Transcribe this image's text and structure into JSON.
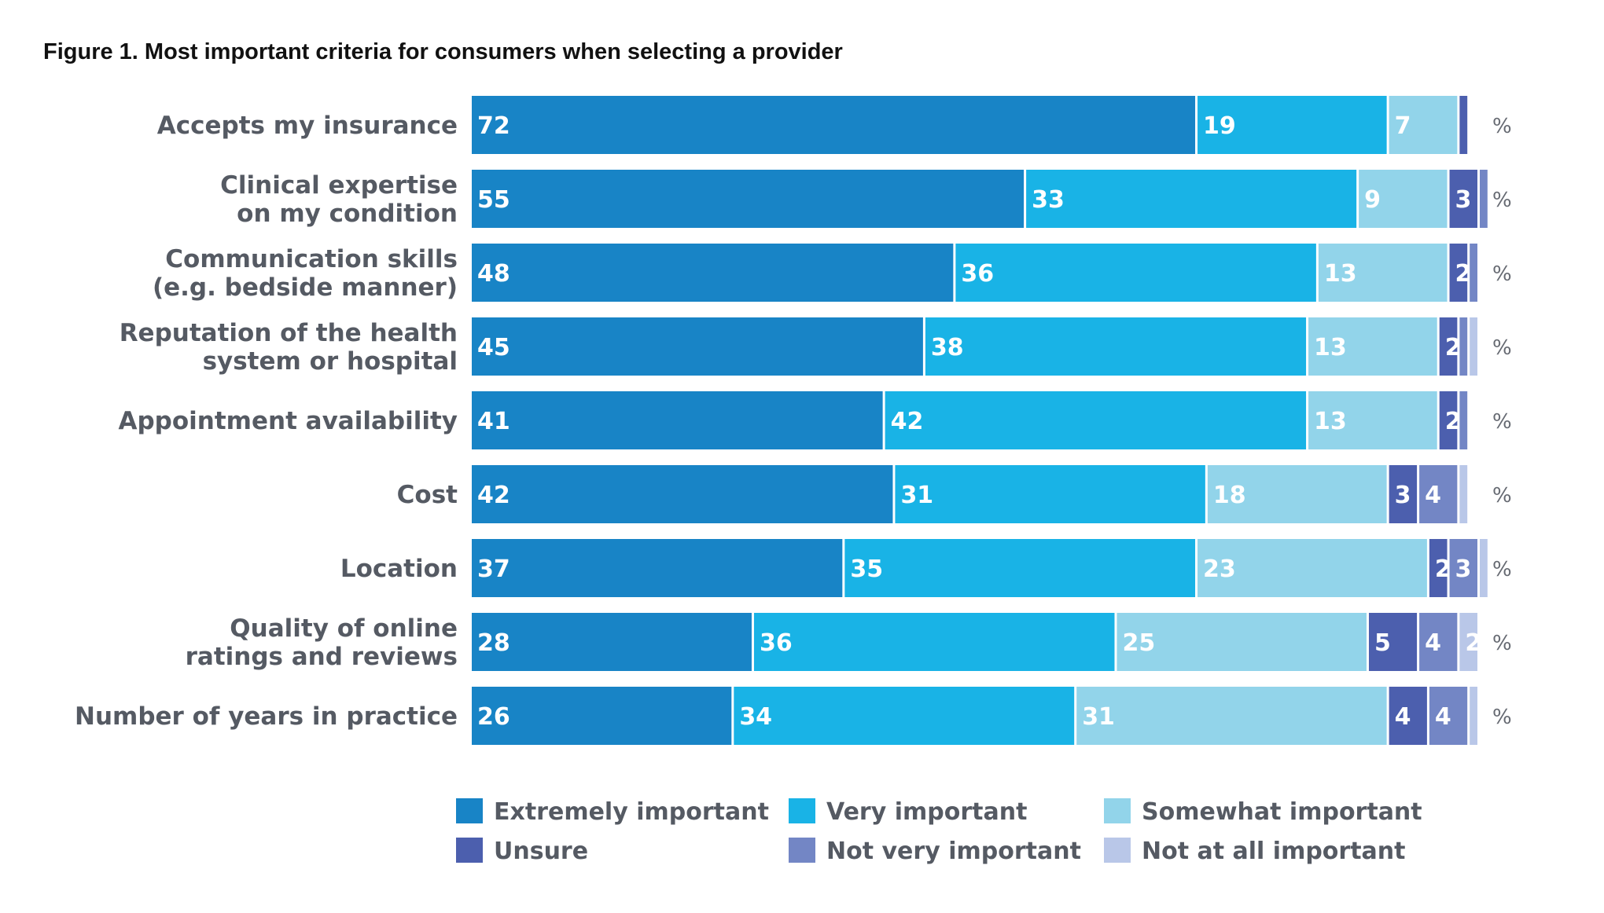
{
  "chart_data": {
    "type": "bar",
    "orientation": "horizontal",
    "stacked": true,
    "title": "Figure 1. Most important criteria for consumers when selecting a provider",
    "unit": "%",
    "categories": [
      [
        "Accepts my insurance"
      ],
      [
        "Clinical expertise",
        "on my condition"
      ],
      [
        "Communication skills",
        "(e.g. bedside manner)"
      ],
      [
        "Reputation of the health",
        "system or hospital"
      ],
      [
        "Appointment availability"
      ],
      [
        "Cost"
      ],
      [
        "Location"
      ],
      [
        "Quality of online",
        "ratings and reviews"
      ],
      [
        "Number of years in practice"
      ]
    ],
    "series": [
      {
        "name": "Extremely important",
        "color": "#1884c6",
        "values": [
          72,
          55,
          48,
          45,
          41,
          42,
          37,
          28,
          26
        ]
      },
      {
        "name": "Very important",
        "color": "#19b3e6",
        "values": [
          19,
          33,
          36,
          38,
          42,
          31,
          35,
          36,
          34
        ]
      },
      {
        "name": "Somewhat important",
        "color": "#92d4ea",
        "values": [
          7,
          9,
          13,
          13,
          13,
          18,
          23,
          25,
          31
        ]
      },
      {
        "name": "Unsure",
        "color": "#4c5fae",
        "values": [
          1,
          3,
          2,
          2,
          2,
          3,
          2,
          5,
          4
        ]
      },
      {
        "name": "Not very important",
        "color": "#7386c5",
        "values": [
          0,
          1,
          1,
          1,
          1,
          4,
          3,
          4,
          4
        ]
      },
      {
        "name": "Not at all important",
        "color": "#b9c7e8",
        "values": [
          0,
          0,
          0,
          1,
          0,
          1,
          1,
          2,
          1
        ]
      }
    ],
    "xlim": [
      0,
      100
    ],
    "legend_position": "bottom"
  }
}
